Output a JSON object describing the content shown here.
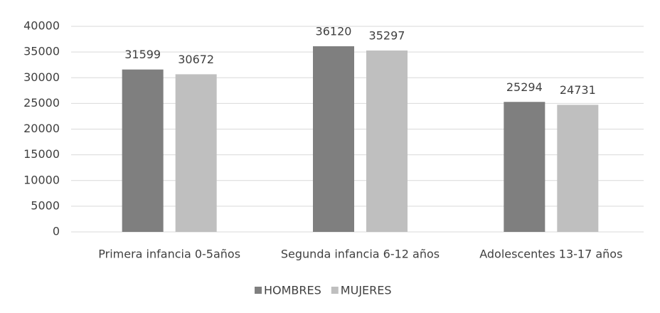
{
  "chart_data": {
    "type": "bar",
    "categories": [
      "Primera infancia 0-5años",
      "Segunda infancia 6-12 años",
      "Adolescentes 13-17 años"
    ],
    "series": [
      {
        "name": "HOMBRES",
        "color": "#7f7f7f",
        "values": [
          31599,
          36120,
          25294
        ]
      },
      {
        "name": "MUJERES",
        "color": "#bfbfbf",
        "values": [
          30672,
          35297,
          24731
        ]
      }
    ],
    "ylim": [
      0,
      40000
    ],
    "yticks": [
      0,
      5000,
      10000,
      15000,
      20000,
      25000,
      30000,
      35000,
      40000
    ],
    "grid": true,
    "legend": "bottom"
  }
}
